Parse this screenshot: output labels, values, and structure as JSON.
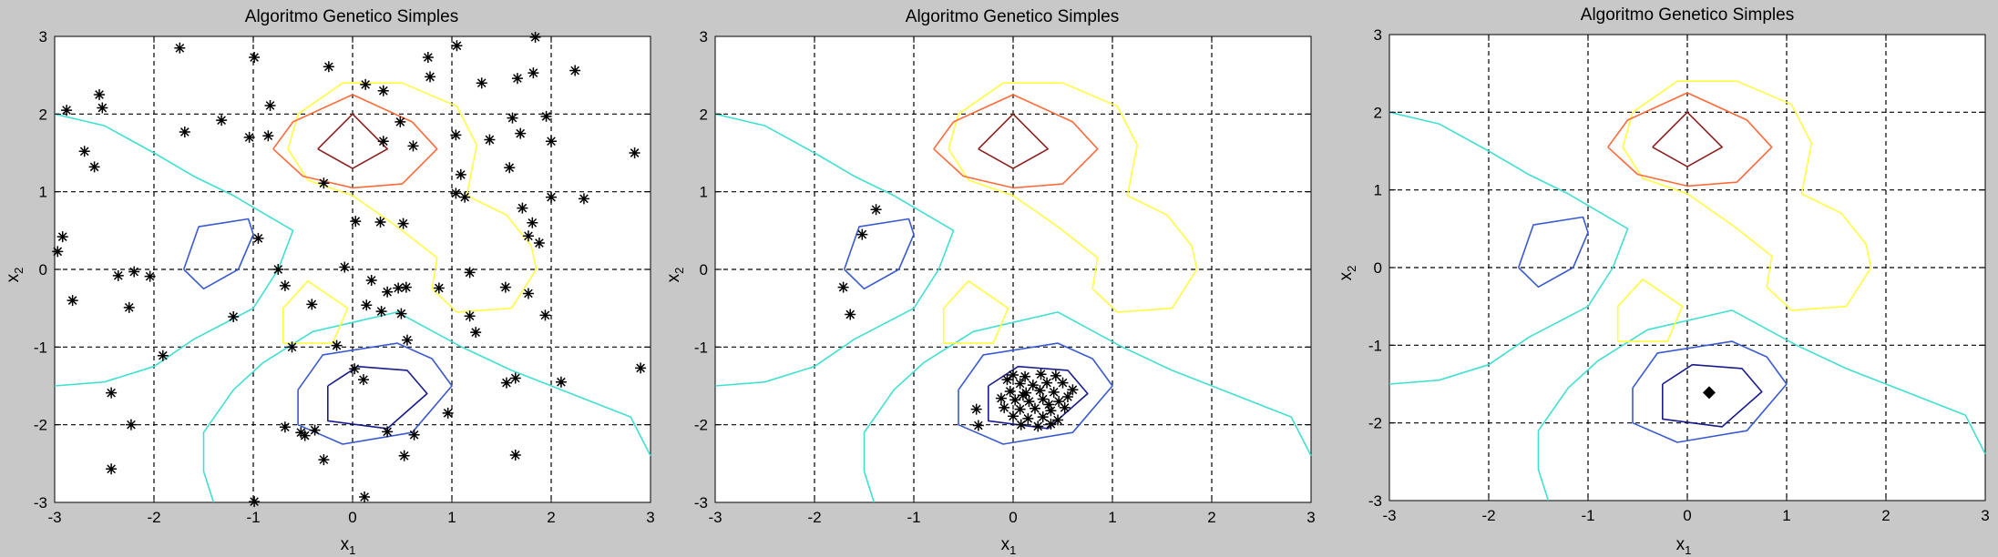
{
  "panels": [
    {
      "title": "Algoritmo Genetico Simples",
      "xlabel": "x",
      "xlabel_sub": "1",
      "ylabel": "x",
      "ylabel_sub": "2"
    },
    {
      "title": "Algoritmo Genetico Simples",
      "xlabel": "x",
      "xlabel_sub": "1",
      "ylabel": "x",
      "ylabel_sub": "2"
    },
    {
      "title": "Algoritmo Genetico Simples",
      "xlabel": "x",
      "xlabel_sub": "1",
      "ylabel": "x",
      "ylabel_sub": "2"
    }
  ],
  "chart_data": [
    {
      "type": "scatter",
      "title": "Algoritmo Genetico Simples",
      "xlabel": "x1",
      "ylabel": "x2",
      "xlim": [
        -3,
        3
      ],
      "ylim": [
        -3,
        3
      ],
      "xticks": [
        -3,
        -2,
        -1,
        0,
        1,
        2,
        3
      ],
      "yticks": [
        -3,
        -2,
        -1,
        0,
        1,
        2,
        3
      ],
      "grid": true,
      "marker": "asterisk",
      "points": [
        [
          -1.74,
          2.85
        ],
        [
          -0.99,
          2.73
        ],
        [
          -0.24,
          2.61
        ],
        [
          0.13,
          2.38
        ],
        [
          0.31,
          2.3
        ],
        [
          0.76,
          2.73
        ],
        [
          0.78,
          2.48
        ],
        [
          1.05,
          2.88
        ],
        [
          1.3,
          2.4
        ],
        [
          1.66,
          2.46
        ],
        [
          1.82,
          2.53
        ],
        [
          1.84,
          2.99
        ],
        [
          2.24,
          2.56
        ],
        [
          -2.88,
          2.05
        ],
        [
          -2.55,
          2.25
        ],
        [
          -2.52,
          2.08
        ],
        [
          -2.7,
          1.52
        ],
        [
          -2.6,
          1.32
        ],
        [
          -1.69,
          1.77
        ],
        [
          -1.32,
          1.92
        ],
        [
          -1.04,
          1.7
        ],
        [
          -0.83,
          2.11
        ],
        [
          -0.85,
          1.72
        ],
        [
          0.31,
          1.65
        ],
        [
          0.48,
          1.9
        ],
        [
          0.61,
          1.59
        ],
        [
          1.04,
          1.73
        ],
        [
          1.38,
          1.67
        ],
        [
          1.61,
          1.95
        ],
        [
          1.69,
          1.75
        ],
        [
          1.95,
          1.97
        ],
        [
          2.0,
          1.65
        ],
        [
          2.84,
          1.5
        ],
        [
          -0.29,
          1.11
        ],
        [
          1.09,
          1.22
        ],
        [
          1.58,
          1.31
        ],
        [
          1.04,
          0.98
        ],
        [
          1.13,
          0.93
        ],
        [
          2.0,
          0.93
        ],
        [
          2.33,
          0.91
        ],
        [
          1.71,
          0.79
        ],
        [
          1.81,
          0.6
        ],
        [
          1.77,
          0.43
        ],
        [
          1.88,
          0.34
        ],
        [
          0.03,
          0.62
        ],
        [
          0.28,
          0.61
        ],
        [
          0.51,
          0.59
        ],
        [
          -2.92,
          0.42
        ],
        [
          -2.97,
          0.23
        ],
        [
          -0.95,
          0.4
        ],
        [
          -2.36,
          -0.08
        ],
        [
          -2.2,
          -0.03
        ],
        [
          -2.04,
          -0.09
        ],
        [
          -0.75,
          0.0
        ],
        [
          -0.08,
          0.03
        ],
        [
          1.18,
          -0.04
        ],
        [
          -0.68,
          -0.21
        ],
        [
          0.19,
          -0.14
        ],
        [
          0.35,
          -0.29
        ],
        [
          0.46,
          -0.24
        ],
        [
          0.54,
          -0.23
        ],
        [
          0.87,
          -0.24
        ],
        [
          1.54,
          -0.23
        ],
        [
          1.77,
          -0.31
        ],
        [
          -2.82,
          -0.4
        ],
        [
          -2.25,
          -0.49
        ],
        [
          -1.2,
          -0.61
        ],
        [
          -0.41,
          -0.45
        ],
        [
          0.14,
          -0.46
        ],
        [
          0.29,
          -0.54
        ],
        [
          0.49,
          -0.57
        ],
        [
          1.18,
          -0.6
        ],
        [
          1.94,
          -0.59
        ],
        [
          1.24,
          -0.81
        ],
        [
          -0.61,
          -1.0
        ],
        [
          -0.16,
          -0.98
        ],
        [
          0.55,
          -0.91
        ],
        [
          -1.91,
          -1.11
        ],
        [
          1.64,
          -1.4
        ],
        [
          1.55,
          -1.46
        ],
        [
          2.1,
          -1.45
        ],
        [
          2.9,
          -1.27
        ],
        [
          0.02,
          -1.28
        ],
        [
          0.11,
          -1.42
        ],
        [
          -2.43,
          -1.59
        ],
        [
          -0.68,
          -2.03
        ],
        [
          -0.52,
          -2.1
        ],
        [
          -0.38,
          -2.07
        ],
        [
          -0.48,
          -2.14
        ],
        [
          0.62,
          -2.13
        ],
        [
          0.35,
          -2.09
        ],
        [
          0.96,
          -1.85
        ],
        [
          -2.23,
          -2.0
        ],
        [
          -0.29,
          -2.45
        ],
        [
          0.52,
          -2.4
        ],
        [
          1.64,
          -2.39
        ],
        [
          -2.43,
          -2.57
        ],
        [
          -0.99,
          -2.99
        ],
        [
          0.12,
          -2.93
        ]
      ]
    },
    {
      "type": "scatter",
      "title": "Algoritmo Genetico Simples",
      "xlabel": "x1",
      "ylabel": "x2",
      "xlim": [
        -3,
        3
      ],
      "ylim": [
        -3,
        3
      ],
      "xticks": [
        -3,
        -2,
        -1,
        0,
        1,
        2,
        3
      ],
      "yticks": [
        -3,
        -2,
        -1,
        0,
        1,
        2,
        3
      ],
      "grid": true,
      "marker": "asterisk",
      "points": [
        [
          -1.38,
          0.77
        ],
        [
          -1.52,
          0.45
        ],
        [
          -1.71,
          -0.23
        ],
        [
          -1.64,
          -0.58
        ],
        [
          -0.37,
          -1.8
        ],
        [
          -0.35,
          -2.01
        ],
        [
          0.0,
          -1.36
        ],
        [
          0.12,
          -1.38
        ],
        [
          0.28,
          -1.35
        ],
        [
          0.43,
          -1.37
        ],
        [
          0.07,
          -1.47
        ],
        [
          0.2,
          -1.49
        ],
        [
          0.34,
          -1.46
        ],
        [
          0.5,
          -1.46
        ],
        [
          0.6,
          -1.55
        ],
        [
          -0.03,
          -1.57
        ],
        [
          0.13,
          -1.59
        ],
        [
          0.27,
          -1.56
        ],
        [
          0.41,
          -1.58
        ],
        [
          0.55,
          -1.64
        ],
        [
          -0.12,
          -1.66
        ],
        [
          0.02,
          -1.68
        ],
        [
          0.16,
          -1.7
        ],
        [
          0.3,
          -1.67
        ],
        [
          0.46,
          -1.7
        ],
        [
          -0.09,
          -1.78
        ],
        [
          0.07,
          -1.8
        ],
        [
          0.22,
          -1.79
        ],
        [
          0.38,
          -1.82
        ],
        [
          0.52,
          -1.78
        ],
        [
          0.0,
          -1.89
        ],
        [
          0.15,
          -1.92
        ],
        [
          0.3,
          -1.9
        ],
        [
          0.45,
          -1.94
        ],
        [
          0.08,
          -2.0
        ],
        [
          0.25,
          -2.02
        ],
        [
          0.38,
          -1.99
        ],
        [
          -0.06,
          -1.42
        ],
        [
          0.36,
          -1.74
        ],
        [
          0.1,
          -1.62
        ]
      ]
    },
    {
      "type": "scatter",
      "title": "Algoritmo Genetico Simples",
      "xlabel": "x1",
      "ylabel": "x2",
      "xlim": [
        -3,
        3
      ],
      "ylim": [
        -3,
        3
      ],
      "xticks": [
        -3,
        -2,
        -1,
        0,
        1,
        2,
        3
      ],
      "yticks": [
        -3,
        -2,
        -1,
        0,
        1,
        2,
        3
      ],
      "grid": true,
      "marker": "diamond",
      "points": [
        [
          0.22,
          -1.61
        ]
      ]
    }
  ],
  "contour_colors": {
    "cyan": "#40e0d0",
    "yellow": "#ffff40",
    "orange": "#ff6a3a",
    "dark_red": "#8a2020",
    "blue": "#3a5ad0",
    "navy": "#1a1a8a"
  },
  "contours": [
    {
      "color": "cyan",
      "pts": [
        [
          -3,
          2
        ],
        [
          -2.5,
          1.85
        ],
        [
          -2,
          1.5
        ],
        [
          -1.6,
          1.2
        ],
        [
          -1.2,
          0.95
        ],
        [
          -0.6,
          0.5
        ],
        [
          -0.75,
          0
        ],
        [
          -1,
          -0.5
        ],
        [
          -1.6,
          -0.9
        ],
        [
          -2,
          -1.25
        ],
        [
          -2.5,
          -1.45
        ],
        [
          -3,
          -1.5
        ]
      ]
    },
    {
      "color": "cyan",
      "pts": [
        [
          -1.4,
          -3
        ],
        [
          -1.5,
          -2.6
        ],
        [
          -1.5,
          -2.1
        ],
        [
          -1.2,
          -1.55
        ],
        [
          -0.9,
          -1.2
        ],
        [
          -0.4,
          -0.8
        ],
        [
          0.45,
          -0.55
        ],
        [
          1.1,
          -1
        ],
        [
          1.6,
          -1.3
        ],
        [
          2.2,
          -1.6
        ],
        [
          2.8,
          -1.9
        ],
        [
          3,
          -2.4
        ]
      ]
    },
    {
      "color": "yellow",
      "pts": [
        [
          -0.65,
          1.55
        ],
        [
          -0.55,
          2
        ],
        [
          -0.1,
          2.4
        ],
        [
          0.5,
          2.4
        ],
        [
          1.05,
          2.1
        ],
        [
          1.25,
          1.6
        ],
        [
          1.15,
          0.95
        ],
        [
          1.55,
          0.7
        ],
        [
          1.8,
          0.3
        ],
        [
          1.85,
          0
        ],
        [
          1.6,
          -0.5
        ],
        [
          1.05,
          -0.55
        ],
        [
          0.8,
          -0.25
        ],
        [
          0.85,
          0.15
        ],
        [
          0.45,
          0.55
        ],
        [
          0,
          0.95
        ],
        [
          -0.45,
          1.15
        ],
        [
          -0.65,
          1.55
        ]
      ]
    },
    {
      "color": "yellow",
      "pts": [
        [
          -0.7,
          -0.95
        ],
        [
          -0.2,
          -0.95
        ],
        [
          -0.05,
          -0.5
        ],
        [
          -0.45,
          -0.15
        ],
        [
          -0.7,
          -0.5
        ],
        [
          -0.7,
          -0.95
        ]
      ]
    },
    {
      "color": "orange",
      "pts": [
        [
          -0.8,
          1.55
        ],
        [
          -0.6,
          1.9
        ],
        [
          0,
          2.25
        ],
        [
          0.6,
          1.9
        ],
        [
          0.85,
          1.55
        ],
        [
          0.5,
          1.1
        ],
        [
          0,
          1.05
        ],
        [
          -0.5,
          1.2
        ],
        [
          -0.8,
          1.55
        ]
      ]
    },
    {
      "color": "dark_red",
      "pts": [
        [
          -0.35,
          1.55
        ],
        [
          0,
          2
        ],
        [
          0.35,
          1.55
        ],
        [
          0,
          1.3
        ],
        [
          -0.35,
          1.55
        ]
      ]
    },
    {
      "color": "blue",
      "pts": [
        [
          -1.7,
          0
        ],
        [
          -1.55,
          0.55
        ],
        [
          -1.05,
          0.65
        ],
        [
          -1,
          0.45
        ],
        [
          -1.15,
          0
        ],
        [
          -1.5,
          -0.25
        ],
        [
          -1.7,
          0
        ]
      ]
    },
    {
      "color": "blue",
      "pts": [
        [
          -0.55,
          -1.55
        ],
        [
          -0.55,
          -2
        ],
        [
          -0.1,
          -2.25
        ],
        [
          0.6,
          -2.1
        ],
        [
          1,
          -1.5
        ],
        [
          0.8,
          -1.15
        ],
        [
          0.45,
          -0.95
        ],
        [
          -0.3,
          -1.1
        ],
        [
          -0.55,
          -1.55
        ]
      ]
    },
    {
      "color": "navy",
      "pts": [
        [
          -0.25,
          -1.5
        ],
        [
          -0.25,
          -1.95
        ],
        [
          0.35,
          -2.05
        ],
        [
          0.75,
          -1.6
        ],
        [
          0.55,
          -1.3
        ],
        [
          0.05,
          -1.25
        ],
        [
          -0.25,
          -1.5
        ]
      ]
    }
  ]
}
